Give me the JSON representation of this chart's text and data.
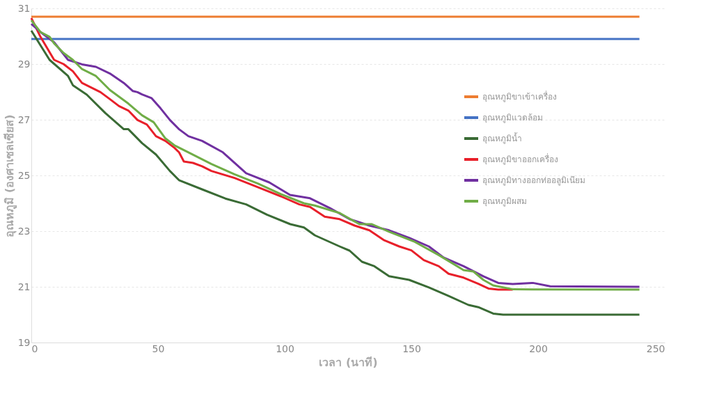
{
  "chart_data": {
    "type": "line",
    "xlabel": "เวลา (นาที)",
    "ylabel": "อุณหภูมิ (องศาเซลเซียส)",
    "xlim": [
      0,
      250
    ],
    "xticks": [
      0,
      50,
      100,
      150,
      200,
      250
    ],
    "ylim": [
      19,
      31
    ],
    "yticks": [
      19,
      21,
      23,
      25,
      27,
      29,
      31
    ],
    "grid": "y",
    "legend": "right",
    "marker": "none",
    "line_style": "solid",
    "series": [
      {
        "name": "อุณหภูมิขาเข้าเครื่อง",
        "color": "#ed7d31",
        "x": [
          0,
          240
        ],
        "values": [
          30.7,
          30.7
        ]
      },
      {
        "name": "อุณหภูมิแวดล้อม",
        "color": "#4472c4",
        "x": [
          0,
          240
        ],
        "values": [
          29.9,
          29.9
        ]
      },
      {
        "name": "อุณหภูมิน้ำ",
        "color": "#3a6b35",
        "x": [
          0,
          7.2,
          14.5,
          16.4,
          21.9,
          29.2,
          36.5,
          38.3,
          43.7,
          49.2,
          54.7,
          58.3,
          67.4,
          76.6,
          84.8,
          93,
          102.2,
          107.6,
          111.9,
          121.7,
          125.6,
          130.5,
          135.4,
          141.2,
          149.1,
          156.9,
          164.7,
          172.5,
          176.4,
          182.3,
          186.2,
          240
        ],
        "values": [
          30.2,
          29.15,
          28.57,
          28.24,
          27.9,
          27.24,
          26.66,
          26.66,
          26.16,
          25.75,
          25.16,
          24.83,
          24.5,
          24.17,
          23.96,
          23.59,
          23.25,
          23.13,
          22.85,
          22.45,
          22.3,
          21.9,
          21.74,
          21.38,
          21.25,
          20.98,
          20.67,
          20.35,
          20.27,
          20.04,
          20.0,
          20.0
        ]
      },
      {
        "name": "อุณหภูมิขาออกเครื่อง",
        "color": "#e8202a",
        "x": [
          0,
          3.6,
          9,
          12.7,
          16.4,
          20,
          27.3,
          31,
          34.6,
          38.3,
          41.9,
          45.6,
          49.2,
          52.9,
          56.5,
          58.3,
          60.2,
          63.8,
          67.4,
          71.1,
          80.2,
          89.4,
          98.5,
          105.8,
          110,
          115.8,
          121.7,
          127.6,
          133.4,
          139.3,
          145.2,
          150,
          154.9,
          160.8,
          164.7,
          170.6,
          176.4,
          180.4,
          184.3,
          190
        ],
        "values": [
          30.65,
          29.98,
          29.15,
          29.0,
          28.74,
          28.32,
          27.99,
          27.74,
          27.49,
          27.33,
          26.99,
          26.83,
          26.41,
          26.24,
          25.99,
          25.83,
          25.5,
          25.45,
          25.33,
          25.16,
          24.91,
          24.58,
          24.25,
          23.96,
          23.87,
          23.52,
          23.43,
          23.2,
          23.03,
          22.67,
          22.45,
          22.31,
          21.96,
          21.74,
          21.47,
          21.33,
          21.11,
          20.94,
          20.9,
          20.9
        ]
      },
      {
        "name": "อุณหภูมิทางออกท่ออลูมิเนียม",
        "color": "#7030a0",
        "x": [
          0,
          3.6,
          9,
          14.5,
          20,
          25.5,
          31,
          36.5,
          40.1,
          41.9,
          43.7,
          47.4,
          51,
          54.7,
          58.3,
          62,
          67.4,
          75.6,
          84.8,
          93.9,
          102.1,
          110,
          117.8,
          125.6,
          133.4,
          141.2,
          149.1,
          156.9,
          162.7,
          170.6,
          178.4,
          184.3,
          190,
          198,
          204.8,
          240
        ],
        "values": [
          30.44,
          30.15,
          29.78,
          29.15,
          28.99,
          28.9,
          28.66,
          28.32,
          28.03,
          27.99,
          27.91,
          27.78,
          27.41,
          26.99,
          26.66,
          26.41,
          26.24,
          25.83,
          25.08,
          24.75,
          24.3,
          24.18,
          23.83,
          23.43,
          23.2,
          23.03,
          22.76,
          22.45,
          22.05,
          21.74,
          21.38,
          21.14,
          21.1,
          21.14,
          21.02,
          21.0
        ]
      },
      {
        "name": "อุณหภูมิผสม",
        "color": "#70ad47",
        "x": [
          0,
          3.6,
          7.2,
          9,
          12.7,
          16.4,
          20,
          25.5,
          31,
          38.3,
          43.7,
          48.3,
          52.9,
          56.5,
          62,
          71.1,
          80.2,
          89.4,
          98.5,
          107.6,
          111.9,
          121.7,
          129.5,
          134.4,
          141.2,
          151,
          160.8,
          170.6,
          174.5,
          178.4,
          182.3,
          190.2,
          240
        ],
        "values": [
          30.57,
          30.15,
          29.98,
          29.74,
          29.4,
          29.15,
          28.82,
          28.57,
          28.07,
          27.58,
          27.16,
          26.91,
          26.33,
          26.08,
          25.83,
          25.41,
          25.04,
          24.71,
          24.33,
          24.0,
          23.92,
          23.65,
          23.25,
          23.25,
          22.98,
          22.63,
          22.14,
          21.6,
          21.55,
          21.25,
          21.05,
          20.91,
          20.9
        ]
      }
    ]
  }
}
